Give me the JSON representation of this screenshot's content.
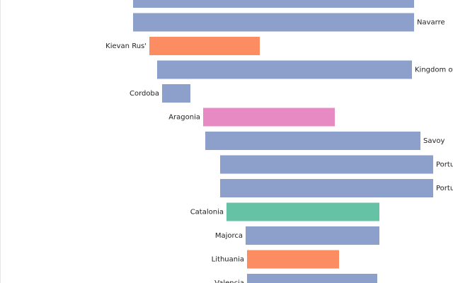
{
  "chart_data": {
    "type": "bar",
    "orientation": "horizontal-timeline",
    "title": "",
    "xlabel": "",
    "ylabel": "",
    "grid": false,
    "legend": "none",
    "xlim": [
      0,
      640
    ],
    "bars": [
      {
        "label": "",
        "start": 188,
        "end": 585,
        "group": "blue",
        "label_side": "right"
      },
      {
        "label": "Navarre",
        "start": 188,
        "end": 585,
        "group": "blue",
        "label_side": "right"
      },
      {
        "label": "Kievan Rus'",
        "start": 211,
        "end": 367,
        "group": "orange",
        "label_side": "left"
      },
      {
        "label": "Kingdom of",
        "start": 222,
        "end": 582,
        "group": "blue",
        "label_side": "right"
      },
      {
        "label": "Cordoba",
        "start": 229,
        "end": 269,
        "group": "blue",
        "label_side": "left"
      },
      {
        "label": "Aragonia",
        "start": 287,
        "end": 473,
        "group": "pink",
        "label_side": "left"
      },
      {
        "label": "Savoy",
        "start": 290,
        "end": 594,
        "group": "blue",
        "label_side": "right"
      },
      {
        "label": "Portu",
        "start": 311,
        "end": 612,
        "group": "blue",
        "label_side": "right"
      },
      {
        "label": "Portu",
        "start": 311,
        "end": 612,
        "group": "blue",
        "label_side": "right"
      },
      {
        "label": "Catalonia",
        "start": 320,
        "end": 536,
        "group": "green",
        "label_side": "left"
      },
      {
        "label": "Majorca",
        "start": 347,
        "end": 536,
        "group": "blue",
        "label_side": "left"
      },
      {
        "label": "Lithuania",
        "start": 349,
        "end": 479,
        "group": "orange",
        "label_side": "left"
      },
      {
        "label": "Valencia",
        "start": 349,
        "end": 533,
        "group": "blue",
        "label_side": "left"
      }
    ],
    "colors": {
      "blue": "#8da0cb",
      "orange": "#fc8d62",
      "pink": "#e78ac3",
      "green": "#66c2a5"
    }
  }
}
